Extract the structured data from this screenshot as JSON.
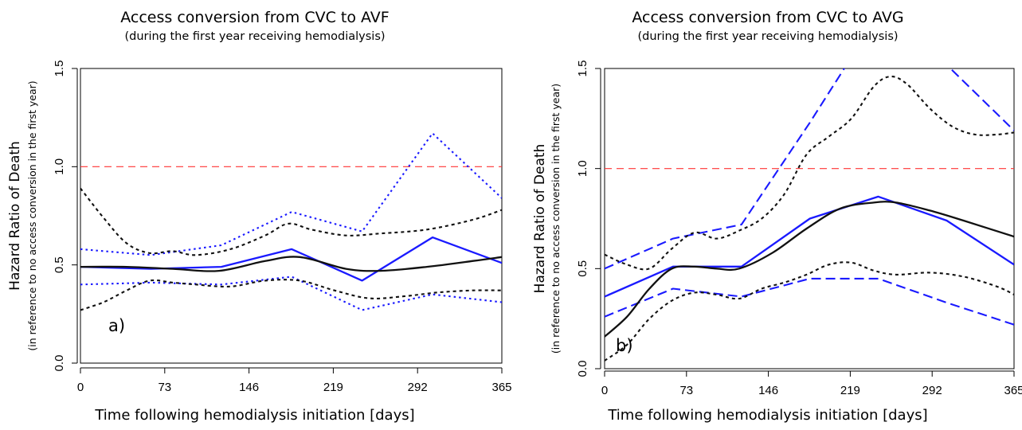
{
  "chart_data": [
    {
      "type": "line",
      "title": "Access conversion from CVC to AVF",
      "subtitle": "(during the first year receiving hemodialysis)",
      "xlabel": "Time following hemodialysis initiation [days]",
      "ylabel": "Hazard Ratio of Death",
      "ylabel_sub": "(in reference to no access conversion in the first year)",
      "panel_label": "a)",
      "xlim": [
        0,
        365
      ],
      "ylim": [
        0,
        1.5
      ],
      "xticks": [
        "0",
        "73",
        "146",
        "219",
        "292",
        "365"
      ],
      "yticks": [
        "0.0",
        "0.5",
        "1.0",
        "1.5"
      ],
      "reference_line": 1.0,
      "grid": false,
      "series": [
        {
          "color": "#1a1aff",
          "dash": "solid",
          "smooth": false,
          "x": [
            0,
            61,
            122,
            183,
            244,
            305,
            365
          ],
          "y": [
            0.49,
            0.48,
            0.49,
            0.58,
            0.42,
            0.64,
            0.51
          ]
        },
        {
          "color": "#1a1aff",
          "dash": "dot",
          "smooth": false,
          "x": [
            0,
            61,
            122,
            183,
            244,
            305,
            365
          ],
          "y": [
            0.58,
            0.55,
            0.6,
            0.77,
            0.67,
            1.17,
            0.84
          ]
        },
        {
          "color": "#1a1aff",
          "dash": "dot",
          "smooth": false,
          "x": [
            0,
            61,
            122,
            183,
            244,
            305,
            365
          ],
          "y": [
            0.4,
            0.41,
            0.4,
            0.44,
            0.27,
            0.35,
            0.31
          ]
        },
        {
          "color": "#111111",
          "dash": "solid",
          "smooth": true,
          "x": [
            0,
            40,
            80,
            120,
            160,
            190,
            230,
            260,
            300,
            340,
            365
          ],
          "y": [
            0.49,
            0.49,
            0.48,
            0.47,
            0.52,
            0.54,
            0.48,
            0.47,
            0.49,
            0.52,
            0.54
          ]
        },
        {
          "color": "#111111",
          "dash": "shortdash",
          "smooth": true,
          "x": [
            0,
            20,
            40,
            60,
            80,
            100,
            130,
            160,
            180,
            200,
            230,
            260,
            300,
            340,
            365
          ],
          "y": [
            0.89,
            0.74,
            0.61,
            0.56,
            0.57,
            0.55,
            0.58,
            0.65,
            0.71,
            0.68,
            0.65,
            0.66,
            0.68,
            0.73,
            0.78
          ]
        },
        {
          "color": "#111111",
          "dash": "shortdash",
          "smooth": true,
          "x": [
            0,
            20,
            40,
            60,
            80,
            100,
            130,
            160,
            190,
            220,
            250,
            280,
            310,
            340,
            365
          ],
          "y": [
            0.27,
            0.31,
            0.37,
            0.42,
            0.41,
            0.4,
            0.39,
            0.42,
            0.42,
            0.37,
            0.33,
            0.34,
            0.36,
            0.37,
            0.37
          ]
        }
      ]
    },
    {
      "type": "line",
      "title": "Access conversion from CVC to AVG",
      "subtitle": "(during the first year receiving hemodialysis)",
      "xlabel": "Time following hemodialysis initiation [days]",
      "ylabel": "Hazard Ratio of Death",
      "ylabel_sub": "(in reference to no access conversion in the first year)",
      "panel_label": "b)",
      "xlim": [
        0,
        365
      ],
      "ylim": [
        0,
        1.5
      ],
      "xticks": [
        "0",
        "73",
        "146",
        "219",
        "292",
        "365"
      ],
      "yticks": [
        "0.0",
        "0.5",
        "1.0",
        "1.5"
      ],
      "reference_line": 1.0,
      "grid": false,
      "series": [
        {
          "color": "#1a1aff",
          "dash": "solid",
          "smooth": false,
          "x": [
            0,
            61,
            122,
            183,
            244,
            305,
            365
          ],
          "y": [
            0.36,
            0.51,
            0.51,
            0.75,
            0.86,
            0.74,
            0.52
          ]
        },
        {
          "color": "#1a1aff",
          "dash": "longdash",
          "smooth": false,
          "x": [
            0,
            61,
            122,
            183,
            225,
            290,
            365
          ],
          "y": [
            0.5,
            0.65,
            0.72,
            1.23,
            1.6,
            1.6,
            1.19
          ]
        },
        {
          "color": "#1a1aff",
          "dash": "longdash",
          "smooth": false,
          "x": [
            0,
            61,
            122,
            183,
            244,
            305,
            365
          ],
          "y": [
            0.26,
            0.4,
            0.36,
            0.45,
            0.45,
            0.33,
            0.22
          ]
        },
        {
          "color": "#111111",
          "dash": "solid",
          "smooth": true,
          "x": [
            0,
            20,
            40,
            60,
            80,
            100,
            120,
            150,
            180,
            210,
            240,
            260,
            290,
            320,
            365
          ],
          "y": [
            0.16,
            0.26,
            0.4,
            0.5,
            0.51,
            0.5,
            0.5,
            0.58,
            0.7,
            0.8,
            0.83,
            0.83,
            0.79,
            0.74,
            0.66
          ]
        },
        {
          "color": "#111111",
          "dash": "shortdash",
          "smooth": true,
          "x": [
            0,
            20,
            40,
            60,
            80,
            100,
            120,
            140,
            160,
            180,
            200,
            220,
            240,
            255,
            270,
            290,
            310,
            330,
            350,
            365
          ],
          "y": [
            0.57,
            0.52,
            0.5,
            0.6,
            0.68,
            0.65,
            0.69,
            0.75,
            0.87,
            1.07,
            1.16,
            1.25,
            1.41,
            1.46,
            1.42,
            1.3,
            1.21,
            1.17,
            1.17,
            1.18
          ]
        },
        {
          "color": "#111111",
          "dash": "shortdash",
          "smooth": true,
          "x": [
            0,
            20,
            40,
            60,
            80,
            100,
            120,
            140,
            160,
            180,
            200,
            220,
            240,
            260,
            290,
            320,
            350,
            365
          ],
          "y": [
            0.04,
            0.12,
            0.25,
            0.34,
            0.38,
            0.37,
            0.35,
            0.4,
            0.43,
            0.47,
            0.52,
            0.53,
            0.49,
            0.47,
            0.48,
            0.46,
            0.41,
            0.37
          ]
        }
      ]
    }
  ]
}
